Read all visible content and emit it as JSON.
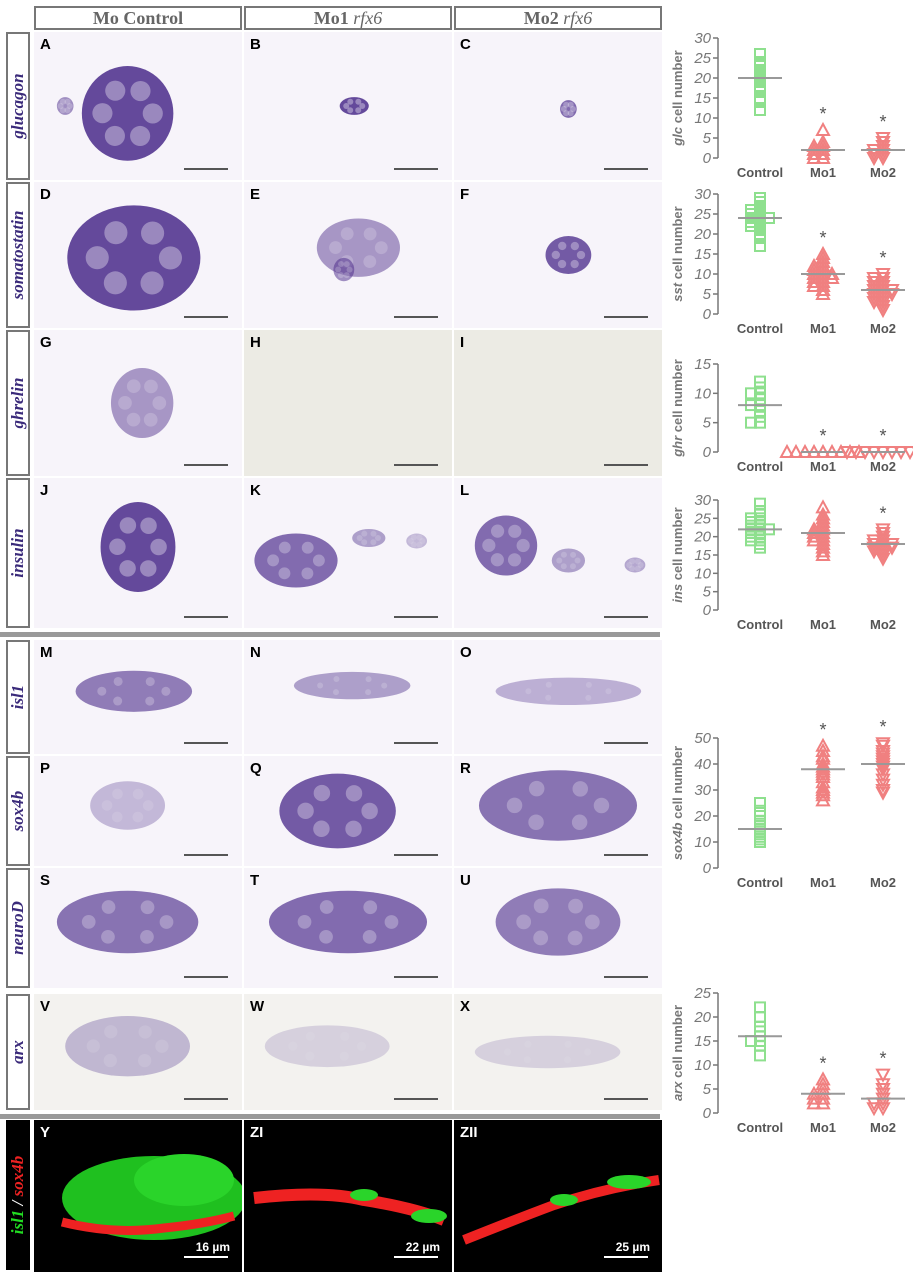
{
  "column_headers": [
    {
      "text": "Mo Control",
      "gene": ""
    },
    {
      "text": "Mo1 ",
      "gene": "rfx6"
    },
    {
      "text": "Mo2 ",
      "gene": "rfx6"
    }
  ],
  "rows": [
    {
      "gene": "glucagon",
      "panels": [
        "A",
        "B",
        "C"
      ]
    },
    {
      "gene": "somatostatin",
      "panels": [
        "D",
        "E",
        "F"
      ]
    },
    {
      "gene": "ghrelin",
      "panels": [
        "G",
        "H",
        "I"
      ]
    },
    {
      "gene": "insulin",
      "panels": [
        "J",
        "K",
        "L"
      ]
    },
    {
      "gene": "isl1",
      "panels": [
        "M",
        "N",
        "O"
      ]
    },
    {
      "gene": "sox4b",
      "panels": [
        "P",
        "Q",
        "R"
      ]
    },
    {
      "gene": "neuroD",
      "panels": [
        "S",
        "T",
        "U"
      ]
    },
    {
      "gene": "arx",
      "panels": [
        "V",
        "W",
        "X"
      ]
    }
  ],
  "fluor_row": {
    "label_green": "isl1",
    "label_sep": " / ",
    "label_red": "sox4b",
    "panels": [
      "Y",
      "ZI",
      "ZII"
    ],
    "scale_bars": [
      "16 µm",
      "22 µm",
      "25 µm"
    ]
  },
  "colors": {
    "control": "#8ee08e",
    "morphant": "#f08080",
    "stain": "#4a2a8a",
    "axis": "#777777"
  },
  "chart_data": [
    {
      "type": "scatter",
      "panel_row": "glucagon",
      "ylabel_gene": "glc",
      "ylabel_rest": " cell number",
      "categories": [
        "Control",
        "Mo1",
        "Mo2"
      ],
      "ylim": [
        0,
        30
      ],
      "yticks": [
        0,
        5,
        10,
        15,
        20,
        25,
        30
      ],
      "markers": [
        "square",
        "triangle-up",
        "triangle-down"
      ],
      "series": [
        {
          "values": [
            26,
            24,
            23,
            22,
            21,
            20,
            19,
            18,
            17,
            15,
            14,
            12
          ],
          "mean": 20
        },
        {
          "values": [
            7,
            4,
            3,
            3,
            2,
            2,
            1,
            1,
            0,
            0
          ],
          "mean": 2,
          "significant": true
        },
        {
          "values": [
            5,
            4,
            3,
            2,
            2,
            1,
            1,
            0,
            0
          ],
          "mean": 2,
          "significant": true
        }
      ],
      "sig_label": "*"
    },
    {
      "type": "scatter",
      "panel_row": "somatostatin",
      "ylabel_gene": "sst",
      "ylabel_rest": " cell number",
      "categories": [
        "Control",
        "Mo1",
        "Mo2"
      ],
      "ylim": [
        0,
        30
      ],
      "yticks": [
        0,
        5,
        10,
        15,
        20,
        25,
        30
      ],
      "markers": [
        "square",
        "triangle-up",
        "triangle-down"
      ],
      "series": [
        {
          "values": [
            29,
            28,
            27,
            26,
            26,
            25,
            25,
            24,
            24,
            24,
            23,
            23,
            22,
            22,
            21,
            20,
            19,
            17
          ],
          "mean": 24
        },
        {
          "values": [
            15,
            14,
            13,
            12,
            12,
            11,
            11,
            10,
            10,
            10,
            9,
            9,
            9,
            8,
            8,
            7,
            7,
            6,
            5
          ],
          "mean": 10,
          "significant": true
        },
        {
          "values": [
            10,
            9,
            9,
            8,
            8,
            7,
            7,
            6,
            6,
            6,
            5,
            5,
            5,
            4,
            4,
            3,
            3,
            2,
            1
          ],
          "mean": 6,
          "significant": true
        }
      ],
      "sig_label": "*"
    },
    {
      "type": "scatter",
      "panel_row": "ghrelin",
      "ylabel_gene": "ghr",
      "ylabel_rest": " cell number",
      "categories": [
        "Control",
        "Mo1",
        "Mo2"
      ],
      "ylim": [
        0,
        15
      ],
      "yticks": [
        0,
        5,
        10,
        15
      ],
      "markers": [
        "square",
        "triangle-up",
        "triangle-down"
      ],
      "series": [
        {
          "values": [
            12,
            11,
            10,
            10,
            9,
            8,
            8,
            7,
            6,
            5,
            5
          ],
          "mean": 8
        },
        {
          "values": [
            0,
            0,
            0,
            0,
            0,
            0,
            0,
            0,
            0
          ],
          "mean": 0,
          "significant": true
        },
        {
          "values": [
            0,
            0,
            0,
            0,
            0,
            0,
            0,
            0,
            0
          ],
          "mean": 0,
          "significant": true
        }
      ],
      "sig_label": "*"
    },
    {
      "type": "scatter",
      "panel_row": "insulin",
      "ylabel_gene": "ins",
      "ylabel_rest": " cell number",
      "categories": [
        "Control",
        "Mo1",
        "Mo2"
      ],
      "ylim": [
        0,
        30
      ],
      "yticks": [
        0,
        5,
        10,
        15,
        20,
        25,
        30
      ],
      "markers": [
        "square",
        "triangle-up",
        "triangle-down"
      ],
      "series": [
        {
          "values": [
            29,
            27,
            26,
            25,
            25,
            24,
            24,
            23,
            23,
            22,
            22,
            22,
            21,
            21,
            20,
            20,
            19,
            19,
            18,
            17
          ],
          "mean": 22
        },
        {
          "values": [
            28,
            26,
            25,
            24,
            23,
            22,
            22,
            21,
            21,
            20,
            20,
            19,
            19,
            18,
            17,
            16,
            15
          ],
          "mean": 21
        },
        {
          "values": [
            22,
            21,
            20,
            19,
            19,
            18,
            18,
            18,
            17,
            17,
            17,
            16,
            16,
            15,
            14
          ],
          "mean": 18,
          "significant": true
        }
      ],
      "sig_label": "*"
    },
    {
      "type": "scatter",
      "panel_row": "sox4b",
      "ylabel_gene": "sox4b",
      "ylabel_rest": " cell number",
      "categories": [
        "Control",
        "Mo1",
        "Mo2"
      ],
      "ylim": [
        0,
        50
      ],
      "yticks": [
        0,
        10,
        20,
        30,
        40,
        50
      ],
      "markers": [
        "square",
        "triangle-up",
        "triangle-down"
      ],
      "series": [
        {
          "values": [
            25,
            22,
            20,
            18,
            17,
            16,
            15,
            14,
            13,
            12,
            11,
            10
          ],
          "mean": 15
        },
        {
          "values": [
            47,
            45,
            43,
            42,
            40,
            39,
            38,
            37,
            36,
            35,
            33,
            31,
            30,
            29,
            28,
            26
          ],
          "mean": 38,
          "significant": true
        },
        {
          "values": [
            48,
            47,
            45,
            44,
            43,
            42,
            41,
            40,
            39,
            38,
            36,
            34,
            32,
            30,
            29
          ],
          "mean": 40,
          "significant": true
        }
      ],
      "sig_label": "*"
    },
    {
      "type": "scatter",
      "panel_row": "arx",
      "ylabel_gene": "arx",
      "ylabel_rest": " cell number",
      "categories": [
        "Control",
        "Mo1",
        "Mo2"
      ],
      "ylim": [
        0,
        25
      ],
      "yticks": [
        0,
        5,
        10,
        15,
        20,
        25
      ],
      "markers": [
        "square",
        "triangle-up",
        "triangle-down"
      ],
      "series": [
        {
          "values": [
            22,
            20,
            18,
            17,
            16,
            15,
            15,
            14,
            12
          ],
          "mean": 16
        },
        {
          "values": [
            7,
            6,
            5,
            4,
            4,
            3,
            3,
            2,
            2
          ],
          "mean": 4,
          "significant": true
        },
        {
          "values": [
            8,
            6,
            5,
            4,
            3,
            2,
            2,
            1,
            1
          ],
          "mean": 3,
          "significant": true
        }
      ],
      "sig_label": "*"
    }
  ]
}
